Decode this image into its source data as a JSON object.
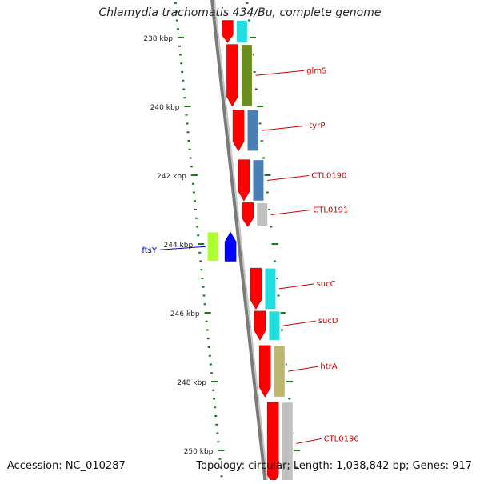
{
  "title": "Chlamydia trachomatis 434/Bu, complete genome",
  "accession": "Accession: NC_010287",
  "topology": "Topology: circular; Length: 1,038,842 bp; Genes: 917",
  "colors": {
    "backbone": "#7a7a7a",
    "ticks": "#1a7a1a",
    "forward_label": "#cc0000",
    "reverse_label": "#0000cc"
  },
  "scale": {
    "unit": "kbp",
    "labels": [
      {
        "kbp": 238,
        "text": "238 kbp"
      },
      {
        "kbp": 240,
        "text": "240 kbp"
      },
      {
        "kbp": 242,
        "text": "242 kbp"
      },
      {
        "kbp": 244,
        "text": "244 kbp"
      },
      {
        "kbp": 246,
        "text": "246 kbp"
      },
      {
        "kbp": 248,
        "text": "248 kbp"
      },
      {
        "kbp": 250,
        "text": "250 kbp"
      }
    ]
  },
  "features": [
    {
      "name": "",
      "strand": "+",
      "start": 237.5,
      "end": 238.15,
      "colorA": "#ff0000",
      "colorB": "#22dddd"
    },
    {
      "name": "glmS",
      "strand": "+",
      "start": 238.2,
      "end": 240.0,
      "colorA": "#ff0000",
      "colorB": "#6b8e23"
    },
    {
      "name": "tyrP",
      "strand": "+",
      "start": 240.1,
      "end": 241.3,
      "colorA": "#ff0000",
      "colorB": "#4a7fb5"
    },
    {
      "name": "CTL0190",
      "strand": "+",
      "start": 241.55,
      "end": 242.75,
      "colorA": "#ff0000",
      "colorB": "#4a7fb5"
    },
    {
      "name": "CTL0191",
      "strand": "+",
      "start": 242.8,
      "end": 243.5,
      "colorA": "#ff0000",
      "colorB": "#c0c0c0"
    },
    {
      "name": "ftsY",
      "strand": "-",
      "start": 243.65,
      "end": 244.5,
      "colorA": "#adff2f",
      "colorB": "#0000ff"
    },
    {
      "name": "sucC",
      "strand": "+",
      "start": 244.7,
      "end": 245.9,
      "colorA": "#ff0000",
      "colorB": "#22dddd"
    },
    {
      "name": "sucD",
      "strand": "+",
      "start": 245.95,
      "end": 246.8,
      "colorA": "#ff0000",
      "colorB": "#22dddd"
    },
    {
      "name": "htrA",
      "strand": "+",
      "start": 246.95,
      "end": 248.45,
      "colorA": "#ff0000",
      "colorB": "#bdb76b"
    },
    {
      "name": "CTL0196",
      "strand": "+",
      "start": 248.6,
      "end": 251.0,
      "colorA": "#ff0000",
      "colorB": "#c0c0c0"
    }
  ]
}
